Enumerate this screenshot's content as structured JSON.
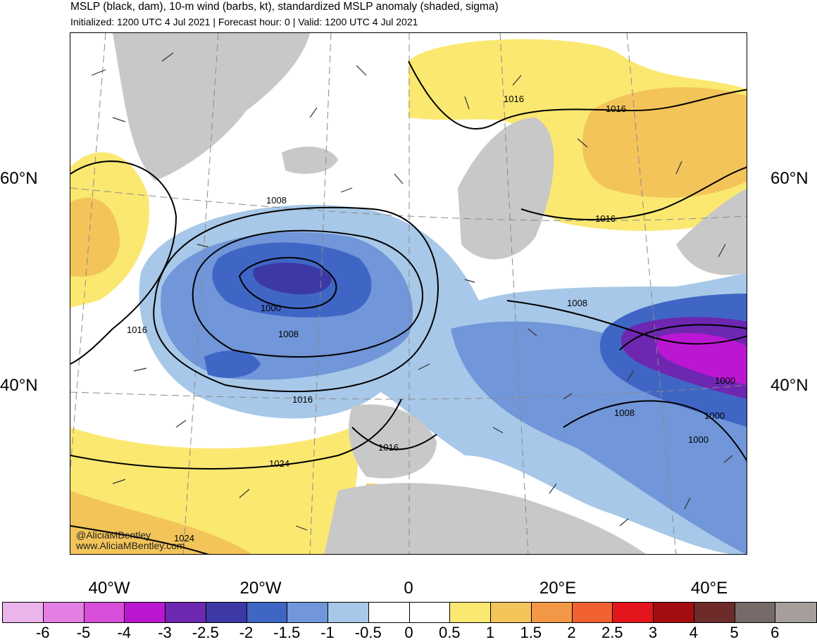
{
  "header": {
    "title": "MSLP (black, dam), 10-m wind (barbs, kt), standardized MSLP anomaly (shaded, sigma)",
    "subtitle": "Initialized: 1200 UTC 4 Jul 2021 | Forecast hour: 0 | Valid: 1200 UTC 4 Jul 2021"
  },
  "map": {
    "lat_labels": {
      "left": [
        "60°N",
        "40°N"
      ],
      "right": [
        "60°N",
        "40°N"
      ]
    },
    "lon_labels": [
      "40°W",
      "20°W",
      "0",
      "20°E",
      "40°E"
    ],
    "isobar_labels": [
      "1016",
      "1016",
      "1008",
      "1016",
      "1000",
      "1016",
      "1008",
      "1008",
      "1016",
      "1000",
      "1008",
      "1000",
      "1024",
      "1016",
      "1000",
      "1024"
    ],
    "colors": {
      "land": "#c8c8c8",
      "coast": "#555555",
      "isobar": "#000000",
      "grid": "#8a8a8a"
    }
  },
  "credit": [
    "@AliciaMBentley",
    "www.AliciaMBentley.com"
  ],
  "colorbar": {
    "colors": [
      "#ebb4eb",
      "#e37fe3",
      "#d84ed8",
      "#bb17d2",
      "#6e27b1",
      "#3c39a7",
      "#3f66c5",
      "#7196d9",
      "#a7c8e8",
      "#ffffff",
      "#ffffff",
      "#fbe870",
      "#f3c45a",
      "#f19745",
      "#f06030",
      "#e4151c",
      "#a30d11",
      "#6d2b2a",
      "#766b69",
      "#a59e9b"
    ],
    "labels": [
      "-6",
      "-5",
      "-4",
      "-3",
      "-2.5",
      "-2",
      "-1.5",
      "-1",
      "-0.5",
      "0",
      "0.5",
      "1",
      "1.5",
      "2",
      "2.5",
      "3",
      "4",
      "5",
      "6"
    ]
  }
}
